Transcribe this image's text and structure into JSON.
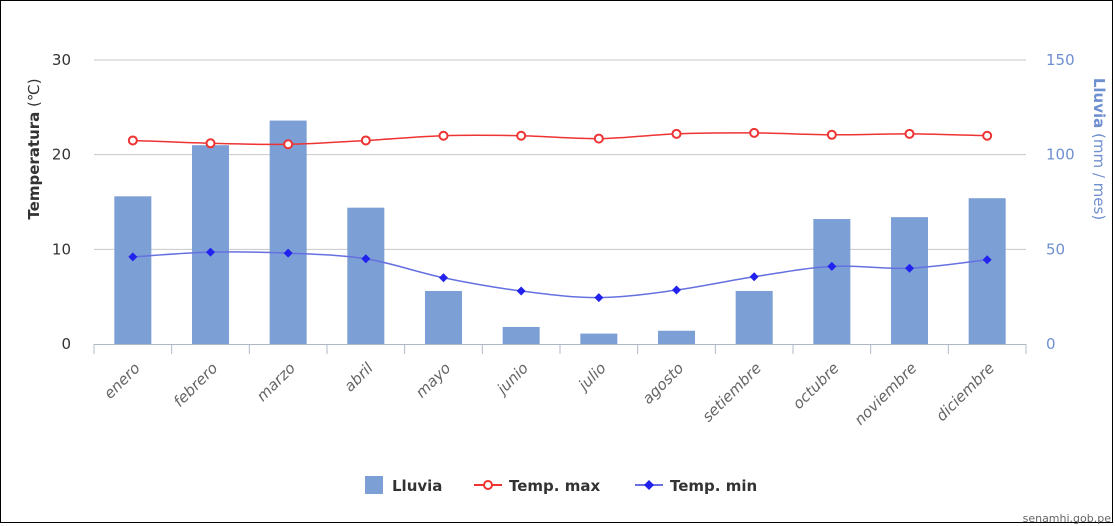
{
  "chart_data": {
    "type": "bar",
    "categories": [
      "enero",
      "febrero",
      "marzo",
      "abril",
      "mayo",
      "junio",
      "julio",
      "agosto",
      "setiembre",
      "octubre",
      "noviembre",
      "diciembre"
    ],
    "series": [
      {
        "name": "Lluvia",
        "type": "bar",
        "axis": "right",
        "color": "#7c9fd6",
        "values": [
          78,
          105,
          118,
          72,
          28,
          9,
          5.5,
          7,
          28,
          66,
          67,
          77
        ]
      },
      {
        "name": "Temp. max",
        "type": "line",
        "axis": "left",
        "color": "#ee3333",
        "values": [
          21.5,
          21.2,
          21.1,
          21.5,
          22.0,
          22.0,
          21.7,
          22.2,
          22.3,
          22.1,
          22.2,
          22.0
        ]
      },
      {
        "name": "Temp. min",
        "type": "line",
        "axis": "left",
        "color": "#2222ee",
        "values": [
          9.2,
          9.7,
          9.6,
          9.0,
          7.0,
          5.6,
          4.9,
          5.7,
          7.1,
          8.2,
          8.0,
          8.9
        ]
      }
    ],
    "ylabel_left": {
      "bold": "Temperatura",
      "unit": " (℃)"
    },
    "ylabel_right": {
      "bold": "Lluvia",
      "unit": " (mm / mes)"
    },
    "ylim_left": [
      0,
      30
    ],
    "yticks_left": [
      0,
      10,
      20,
      30
    ],
    "ylim_right": [
      0,
      150
    ],
    "yticks_right": [
      0,
      50,
      100,
      150
    ],
    "grid": true,
    "legend_position": "bottom"
  },
  "credit": "senamhi.gob.pe"
}
